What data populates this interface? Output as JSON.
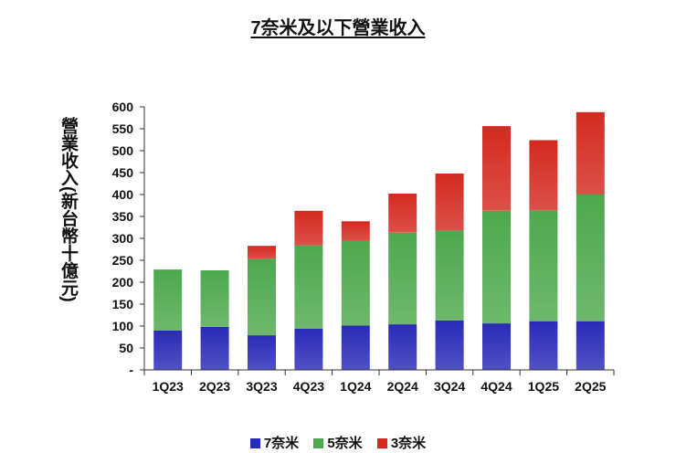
{
  "chart_data": {
    "type": "bar",
    "stacked": true,
    "title": "7奈米及以下營業收入",
    "ylabel": "營業收入(新台幣十億元)",
    "xlabel": "",
    "categories": [
      "1Q23",
      "2Q23",
      "3Q23",
      "4Q23",
      "1Q24",
      "2Q24",
      "3Q24",
      "4Q24",
      "1Q25",
      "2Q25"
    ],
    "ylim": [
      0,
      600
    ],
    "yticks": [
      "-",
      "50",
      "100",
      "150",
      "200",
      "250",
      "300",
      "350",
      "400",
      "450",
      "500",
      "550",
      "600"
    ],
    "ytick_values": [
      0,
      50,
      100,
      150,
      200,
      250,
      300,
      350,
      400,
      450,
      500,
      550,
      600
    ],
    "grid": false,
    "legend_position": "bottom",
    "series": [
      {
        "name": "7奈米",
        "color": "#2a2ab8",
        "values": [
          90,
          98,
          79,
          94,
          101,
          104,
          113,
          106,
          111,
          111
        ]
      },
      {
        "name": "5奈米",
        "color": "#4ea84e",
        "values": [
          139,
          129,
          175,
          190,
          193,
          209,
          205,
          257,
          253,
          290
        ]
      },
      {
        "name": "3奈米",
        "color": "#d42a20",
        "values": [
          0,
          0,
          29,
          79,
          45,
          89,
          130,
          193,
          160,
          187
        ]
      }
    ]
  }
}
